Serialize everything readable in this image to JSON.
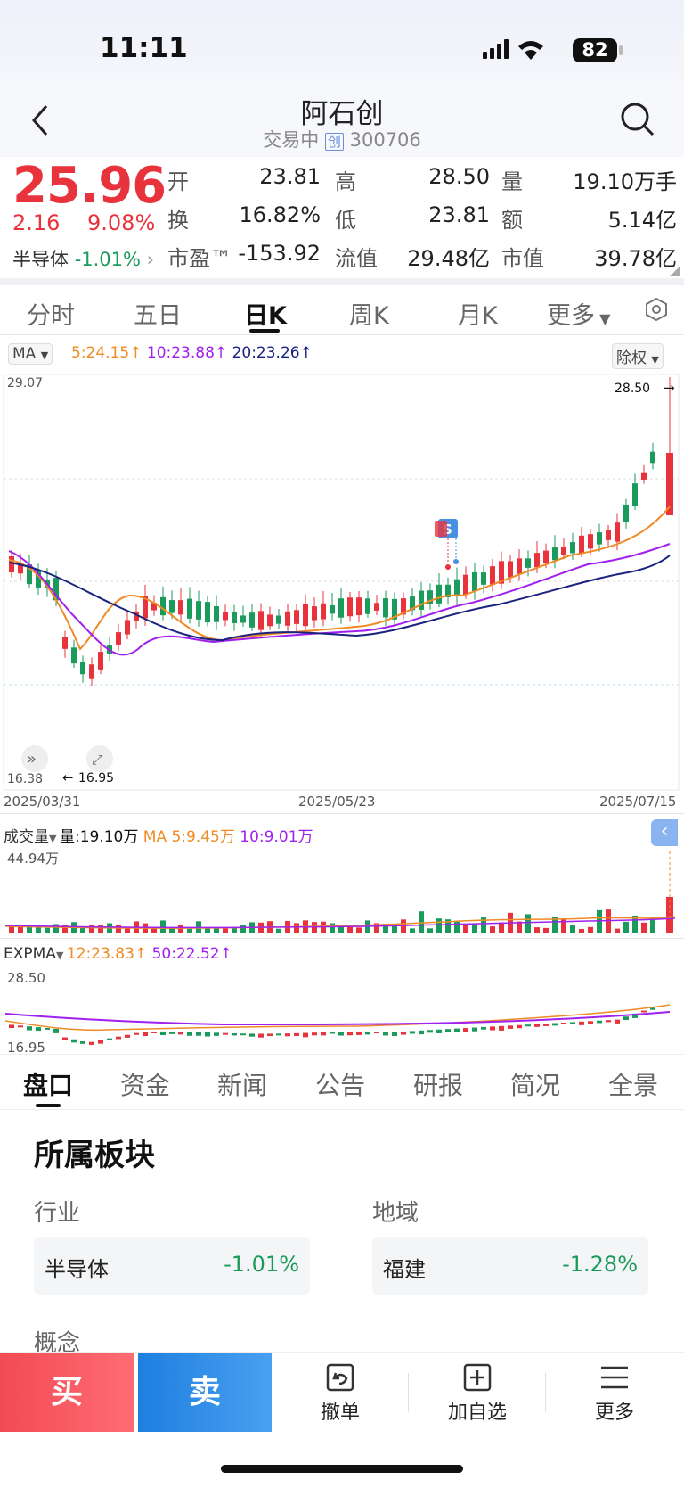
{
  "status": {
    "time": "11:11",
    "battery": "82"
  },
  "header": {
    "title": "阿石创",
    "trade_status": "交易中",
    "board_tag": "创",
    "code": "300706"
  },
  "quote": {
    "price": "25.96",
    "change": "2.16",
    "change_pct": "9.08%",
    "sector_name": "半导体",
    "sector_pct": "-1.01%",
    "open_label": "开",
    "open": "23.81",
    "high_label": "高",
    "high": "28.50",
    "vol_label": "量",
    "vol": "19.10万手",
    "turn_label": "换",
    "turn": "16.82%",
    "low_label": "低",
    "low": "23.81",
    "amt_label": "额",
    "amt": "5.14亿",
    "pe_label": "市盈™",
    "pe": "-153.92",
    "float_label": "流值",
    "float": "29.48亿",
    "mcap_label": "市值",
    "mcap": "39.78亿"
  },
  "tabs": [
    "分时",
    "五日",
    "日K",
    "周K",
    "月K",
    "更多"
  ],
  "indicator": {
    "ma_label": "MA",
    "ma5": "5:24.15",
    "ma10": "10:23.88",
    "ma20": "20:23.26",
    "adjust": "除权"
  },
  "kline_axis": {
    "top": "29.07",
    "bottom": "16.38",
    "high_mark": "28.50",
    "low_mark": "16.95",
    "date_start": "2025/03/31",
    "date_mid": "2025/05/23",
    "date_end": "2025/07/15"
  },
  "signal": {
    "letter": "S"
  },
  "volume": {
    "label": "成交量",
    "vol_text": "量:19.10万",
    "ma5": "MA 5:9.45万",
    "ma10": "10:9.01万",
    "top": "44.94万"
  },
  "expma": {
    "label": "EXPMA",
    "v12": "12:23.83",
    "v50": "50:22.52",
    "top": "28.50",
    "bottom": "16.95"
  },
  "subtabs": [
    "盘口",
    "资金",
    "新闻",
    "公告",
    "研报",
    "简况",
    "全景"
  ],
  "board": {
    "title": "所属板块",
    "industry_label": "行业",
    "region_label": "地域",
    "industry_name": "半导体",
    "industry_pct": "-1.01%",
    "region_name": "福建",
    "region_pct": "-1.28%",
    "concept_label": "概念"
  },
  "bottom": {
    "buy": "买",
    "sell": "卖",
    "cancel": "撤单",
    "add": "加自选",
    "more": "更多"
  },
  "colors": {
    "up": "#e8333d",
    "down": "#1a9b5b",
    "ma5": "#f08a24",
    "ma10": "#a020f0",
    "ma20": "#1a237e",
    "buy": "#f24b55",
    "sell": "#2a8be8"
  },
  "chart_data": {
    "type": "candlestick",
    "x": [
      "2025/03/31",
      "2025/05/23",
      "2025/07/15"
    ],
    "ylim": [
      16.38,
      29.07
    ],
    "last": {
      "open": 23.81,
      "high": 28.5,
      "low": 23.81,
      "close": 25.96
    },
    "period_high": 28.5,
    "period_low": 16.95,
    "ma": [
      {
        "name": "MA5",
        "value": 24.15
      },
      {
        "name": "MA10",
        "value": 23.88
      },
      {
        "name": "MA20",
        "value": 23.26
      }
    ],
    "volume": {
      "last": "19.10万",
      "ma5": "9.45万",
      "ma10": "9.01万",
      "max": "44.94万"
    },
    "expma": [
      {
        "name": "EXPMA12",
        "value": 23.83
      },
      {
        "name": "EXPMA50",
        "value": 22.52
      }
    ]
  }
}
